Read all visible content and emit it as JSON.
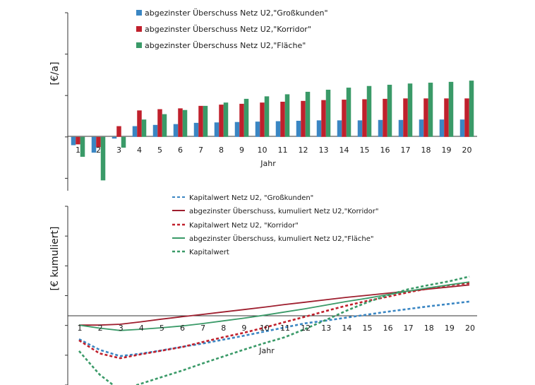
{
  "colors": {
    "blue": "#3a86c3",
    "red": "#c0202c",
    "green": "#3a9a68",
    "dark_red": "#9e1e2e",
    "axis": "#333333"
  },
  "chart_data": [
    {
      "type": "bar",
      "ylabel": "[€/a]",
      "xlabel": "Jahr",
      "categories": [
        "1",
        "2",
        "3",
        "4",
        "5",
        "6",
        "7",
        "8",
        "9",
        "10",
        "11",
        "12",
        "13",
        "14",
        "15",
        "16",
        "17",
        "18",
        "19",
        "20"
      ],
      "ylim": [
        -13,
        30
      ],
      "grid": false,
      "legend_position": "top",
      "series": [
        {
          "name": "abgezinster Überschuss Netz U2,\"Großkunden\"",
          "color": "blue",
          "values": [
            -2,
            -3.8,
            -0.4,
            2.6,
            2.9,
            3.1,
            3.4,
            3.5,
            3.6,
            3.7,
            3.8,
            3.9,
            4.0,
            4.0,
            4.0,
            4.1,
            4.1,
            4.2,
            4.2,
            4.2
          ]
        },
        {
          "name": "abgezinster Überschuss Netz U2,\"Korridor\"",
          "color": "red",
          "values": [
            -1.8,
            -2.5,
            2.6,
            6.4,
            6.7,
            6.9,
            7.5,
            7.8,
            8.0,
            8.3,
            8.5,
            8.7,
            8.9,
            9.0,
            9.1,
            9.2,
            9.3,
            9.3,
            9.3,
            9.3
          ]
        },
        {
          "name": "abgezinster Überschuss Netz U2,\"Fläche\"",
          "color": "green",
          "values": [
            -4.8,
            -10.5,
            -2.6,
            4.2,
            5.5,
            6.5,
            7.5,
            8.3,
            9.2,
            9.8,
            10.3,
            10.9,
            11.4,
            11.9,
            12.3,
            12.6,
            12.9,
            13.1,
            13.3,
            13.6
          ]
        }
      ]
    },
    {
      "type": "line",
      "ylabel": "[€ kumuliert]",
      "xlabel": "Jahr",
      "x": [
        1,
        2,
        3,
        4,
        5,
        6,
        7,
        8,
        9,
        10,
        11,
        12,
        13,
        14,
        15,
        16,
        17,
        18,
        19,
        20
      ],
      "tick_labels": [
        "1",
        "2",
        "3",
        "4",
        "5",
        "6",
        "7",
        "8",
        "9",
        "10",
        "11",
        "12",
        "13",
        "14",
        "15",
        "16",
        "17",
        "18",
        "19",
        "20"
      ],
      "ylim": [
        -200,
        400
      ],
      "grid": false,
      "legend_position": "top",
      "series": [
        {
          "name": "Kapitalwert Netz U2, \"Großkunden\"",
          "color": "blue",
          "style": "dashed",
          "values": [
            -46,
            -82,
            -103,
            -95,
            -84,
            -72,
            -61,
            -48,
            -35,
            -21,
            -7,
            7,
            16,
            26,
            36,
            46,
            55,
            64,
            72,
            80
          ]
        },
        {
          "name": "abgezinster Überschuss, kumuliert Netz U2,\"Korridor\"",
          "color": "dark_red",
          "style": "solid",
          "values": [
            1,
            1,
            4,
            12,
            21,
            29,
            37,
            45,
            53,
            61,
            70,
            78,
            86,
            94,
            101,
            108,
            115,
            122,
            129,
            136
          ]
        },
        {
          "name": "Kapitalwert Netz U2, \"Korridor\"",
          "color": "red",
          "style": "dashed",
          "values": [
            -50,
            -94,
            -110,
            -97,
            -85,
            -73,
            -56,
            -40,
            -25,
            -8,
            11,
            29,
            48,
            66,
            82,
            96,
            111,
            124,
            135,
            142
          ]
        },
        {
          "name": "abgezinster Überschuss, kumuliert Netz U2,\"Fläche\"",
          "color": "green",
          "style": "solid",
          "values": [
            1,
            -9,
            -17,
            -13,
            -8,
            -2,
            6,
            15,
            24,
            34,
            45,
            56,
            68,
            80,
            91,
            103,
            115,
            126,
            136,
            146
          ]
        },
        {
          "name": "Kapitalwert",
          "color": "green",
          "style": "dashed",
          "values": [
            -86,
            -165,
            -218,
            -196,
            -174,
            -152,
            -128,
            -105,
            -82,
            -60,
            -40,
            -12,
            18,
            49,
            77,
            101,
            121,
            135,
            148,
            164
          ]
        }
      ]
    }
  ]
}
